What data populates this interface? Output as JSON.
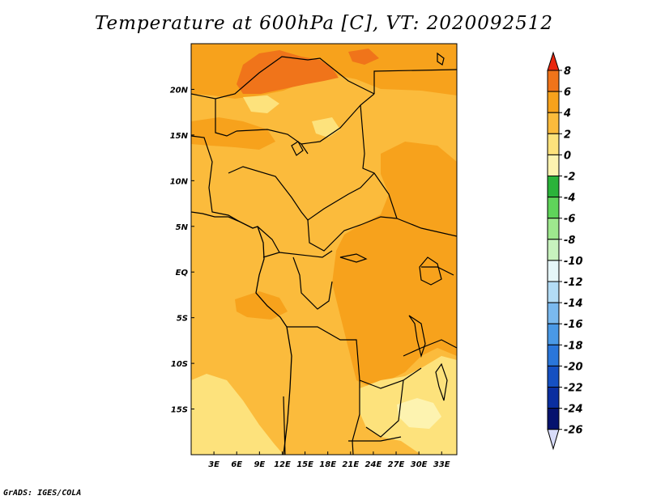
{
  "title": "Temperature at 600hPa [C], VT: 2020092512",
  "credit": "GrADS: IGES/COLA",
  "colors": {
    "c_0_2": "#fbbb3c",
    "c_2_4": "#f7a21c",
    "c_4_6": "#f0741a",
    "c_neg2_0": "#fde27c",
    "c_neg4_neg2": "#fdf3b0",
    "border": "#000000"
  },
  "map": {
    "lon_range": [
      0,
      35
    ],
    "lat_range": [
      -20,
      25
    ],
    "lon_ticks": [
      "3E",
      "6E",
      "9E",
      "12E",
      "15E",
      "18E",
      "21E",
      "24E",
      "27E",
      "30E",
      "33E"
    ],
    "lat_ticks": [
      "20N",
      "15N",
      "10N",
      "5N",
      "EQ",
      "5S",
      "10S",
      "15S"
    ]
  },
  "colorbar": {
    "levels": [
      "8",
      "6",
      "4",
      "2",
      "0",
      "-2",
      "-4",
      "-6",
      "-8",
      "-10",
      "-12",
      "-14",
      "-16",
      "-18",
      "-20",
      "-22",
      "-24",
      "-26"
    ],
    "colors": [
      "#e8260e",
      "#f0741a",
      "#f7a21c",
      "#fbbb3c",
      "#fde27c",
      "#fdf3b0",
      "#2bb33a",
      "#5fd35a",
      "#9ee88e",
      "#c8f2be",
      "#e6f6f8",
      "#b3dcf5",
      "#7ab9ee",
      "#4a99e6",
      "#2a76da",
      "#1550c2",
      "#0a2ea0",
      "#05126e",
      "#d8dcfa"
    ]
  }
}
